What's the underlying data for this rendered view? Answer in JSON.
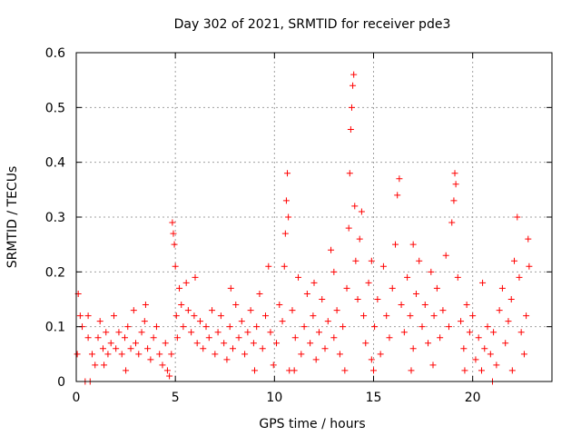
{
  "chart_data": {
    "type": "scatter",
    "title": "Day 302 of 2021, SRMTID for receiver pde3",
    "xlabel": "GPS time / hours",
    "ylabel": "SRMTID / TECUs",
    "xlim": [
      0,
      24
    ],
    "ylim": [
      0,
      0.6
    ],
    "x_ticks": [
      "0",
      "5",
      "10",
      "15",
      "20"
    ],
    "y_ticks": [
      "0",
      "0.1",
      "0.2",
      "0.3",
      "0.4",
      "0.5",
      "0.6"
    ],
    "grid": true,
    "marker": "+",
    "marker_color": "#ff0000",
    "points": [
      [
        0.05,
        0.05
      ],
      [
        0.1,
        0.16
      ],
      [
        0.2,
        0.12
      ],
      [
        0.3,
        0.1
      ],
      [
        0.45,
        0.0
      ],
      [
        0.6,
        0.08
      ],
      [
        0.7,
        0.0
      ],
      [
        0.8,
        0.05
      ],
      [
        0.95,
        0.03
      ],
      [
        1.1,
        0.08
      ],
      [
        1.2,
        0.11
      ],
      [
        1.35,
        0.06
      ],
      [
        1.5,
        0.09
      ],
      [
        1.6,
        0.05
      ],
      [
        1.75,
        0.07
      ],
      [
        1.9,
        0.12
      ],
      [
        2.0,
        0.06
      ],
      [
        2.15,
        0.09
      ],
      [
        2.3,
        0.05
      ],
      [
        2.45,
        0.08
      ],
      [
        2.6,
        0.1
      ],
      [
        2.75,
        0.06
      ],
      [
        2.9,
        0.13
      ],
      [
        3.0,
        0.07
      ],
      [
        3.15,
        0.05
      ],
      [
        3.3,
        0.09
      ],
      [
        3.45,
        0.11
      ],
      [
        3.6,
        0.06
      ],
      [
        3.75,
        0.04
      ],
      [
        3.9,
        0.08
      ],
      [
        4.05,
        0.1
      ],
      [
        4.2,
        0.05
      ],
      [
        4.35,
        0.03
      ],
      [
        4.5,
        0.07
      ],
      [
        4.6,
        0.02
      ],
      [
        4.7,
        0.01
      ],
      [
        4.8,
        0.05
      ],
      [
        4.85,
        0.29
      ],
      [
        4.9,
        0.27
      ],
      [
        4.95,
        0.25
      ],
      [
        5.0,
        0.21
      ],
      [
        5.05,
        0.12
      ],
      [
        5.1,
        0.08
      ],
      [
        5.2,
        0.17
      ],
      [
        5.3,
        0.14
      ],
      [
        5.4,
        0.1
      ],
      [
        5.55,
        0.18
      ],
      [
        5.65,
        0.13
      ],
      [
        5.8,
        0.09
      ],
      [
        5.95,
        0.12
      ],
      [
        6.1,
        0.07
      ],
      [
        6.25,
        0.11
      ],
      [
        6.4,
        0.06
      ],
      [
        6.55,
        0.1
      ],
      [
        6.7,
        0.08
      ],
      [
        6.85,
        0.13
      ],
      [
        7.0,
        0.05
      ],
      [
        7.15,
        0.09
      ],
      [
        7.3,
        0.12
      ],
      [
        7.45,
        0.07
      ],
      [
        7.6,
        0.04
      ],
      [
        7.75,
        0.1
      ],
      [
        7.9,
        0.06
      ],
      [
        8.05,
        0.14
      ],
      [
        8.2,
        0.08
      ],
      [
        8.35,
        0.11
      ],
      [
        8.5,
        0.05
      ],
      [
        8.65,
        0.09
      ],
      [
        8.8,
        0.13
      ],
      [
        8.95,
        0.07
      ],
      [
        9.1,
        0.1
      ],
      [
        9.25,
        0.16
      ],
      [
        9.4,
        0.06
      ],
      [
        9.55,
        0.12
      ],
      [
        9.7,
        0.21
      ],
      [
        9.8,
        0.09
      ],
      [
        9.95,
        0.03
      ],
      [
        10.1,
        0.07
      ],
      [
        10.25,
        0.14
      ],
      [
        10.4,
        0.11
      ],
      [
        10.5,
        0.21
      ],
      [
        10.55,
        0.27
      ],
      [
        10.6,
        0.33
      ],
      [
        10.65,
        0.38
      ],
      [
        10.7,
        0.3
      ],
      [
        10.75,
        0.02
      ],
      [
        10.9,
        0.13
      ],
      [
        11.05,
        0.08
      ],
      [
        11.2,
        0.19
      ],
      [
        11.35,
        0.05
      ],
      [
        11.5,
        0.1
      ],
      [
        11.65,
        0.16
      ],
      [
        11.8,
        0.07
      ],
      [
        11.95,
        0.12
      ],
      [
        12.1,
        0.04
      ],
      [
        12.25,
        0.09
      ],
      [
        12.4,
        0.15
      ],
      [
        12.55,
        0.06
      ],
      [
        12.7,
        0.11
      ],
      [
        12.85,
        0.24
      ],
      [
        13.0,
        0.08
      ],
      [
        13.15,
        0.13
      ],
      [
        13.3,
        0.05
      ],
      [
        13.45,
        0.1
      ],
      [
        13.55,
        0.02
      ],
      [
        13.65,
        0.17
      ],
      [
        13.75,
        0.28
      ],
      [
        13.8,
        0.38
      ],
      [
        13.85,
        0.46
      ],
      [
        13.9,
        0.5
      ],
      [
        13.95,
        0.54
      ],
      [
        14.0,
        0.56
      ],
      [
        14.05,
        0.32
      ],
      [
        14.1,
        0.22
      ],
      [
        14.2,
        0.15
      ],
      [
        14.3,
        0.26
      ],
      [
        14.4,
        0.31
      ],
      [
        14.5,
        0.12
      ],
      [
        14.6,
        0.07
      ],
      [
        14.75,
        0.18
      ],
      [
        14.9,
        0.04
      ],
      [
        15.05,
        0.1
      ],
      [
        15.2,
        0.15
      ],
      [
        15.35,
        0.05
      ],
      [
        15.5,
        0.21
      ],
      [
        15.65,
        0.12
      ],
      [
        15.8,
        0.08
      ],
      [
        15.95,
        0.17
      ],
      [
        16.1,
        0.25
      ],
      [
        16.2,
        0.34
      ],
      [
        16.3,
        0.37
      ],
      [
        16.4,
        0.14
      ],
      [
        16.55,
        0.09
      ],
      [
        16.7,
        0.19
      ],
      [
        16.85,
        0.12
      ],
      [
        17.0,
        0.06
      ],
      [
        17.15,
        0.16
      ],
      [
        17.3,
        0.22
      ],
      [
        17.45,
        0.1
      ],
      [
        17.6,
        0.14
      ],
      [
        17.75,
        0.07
      ],
      [
        17.9,
        0.2
      ],
      [
        18.05,
        0.12
      ],
      [
        18.2,
        0.17
      ],
      [
        18.35,
        0.08
      ],
      [
        18.5,
        0.13
      ],
      [
        18.65,
        0.23
      ],
      [
        18.8,
        0.1
      ],
      [
        18.95,
        0.29
      ],
      [
        19.05,
        0.33
      ],
      [
        19.1,
        0.38
      ],
      [
        19.15,
        0.36
      ],
      [
        19.25,
        0.19
      ],
      [
        19.4,
        0.11
      ],
      [
        19.55,
        0.06
      ],
      [
        19.7,
        0.14
      ],
      [
        19.85,
        0.09
      ],
      [
        20.0,
        0.12
      ],
      [
        20.15,
        0.04
      ],
      [
        20.3,
        0.08
      ],
      [
        20.45,
        0.02
      ],
      [
        20.6,
        0.06
      ],
      [
        20.75,
        0.1
      ],
      [
        20.9,
        0.05
      ],
      [
        21.05,
        0.09
      ],
      [
        21.2,
        0.03
      ],
      [
        21.35,
        0.13
      ],
      [
        21.5,
        0.17
      ],
      [
        21.65,
        0.07
      ],
      [
        21.8,
        0.11
      ],
      [
        21.95,
        0.15
      ],
      [
        22.1,
        0.22
      ],
      [
        22.25,
        0.3
      ],
      [
        22.35,
        0.19
      ],
      [
        22.45,
        0.09
      ],
      [
        22.6,
        0.05
      ],
      [
        22.7,
        0.12
      ],
      [
        22.8,
        0.26
      ],
      [
        22.85,
        0.21
      ],
      [
        0.6,
        0.12
      ],
      [
        1.4,
        0.03
      ],
      [
        2.5,
        0.02
      ],
      [
        3.5,
        0.14
      ],
      [
        6.0,
        0.19
      ],
      [
        7.8,
        0.17
      ],
      [
        9.0,
        0.02
      ],
      [
        11.0,
        0.02
      ],
      [
        12.0,
        0.18
      ],
      [
        15.0,
        0.02
      ],
      [
        16.9,
        0.02
      ],
      [
        18.0,
        0.03
      ],
      [
        19.6,
        0.02
      ],
      [
        21.0,
        0.0
      ],
      [
        22.0,
        0.02
      ],
      [
        13.0,
        0.2
      ],
      [
        14.9,
        0.22
      ],
      [
        17.0,
        0.25
      ],
      [
        20.5,
        0.18
      ]
    ]
  }
}
